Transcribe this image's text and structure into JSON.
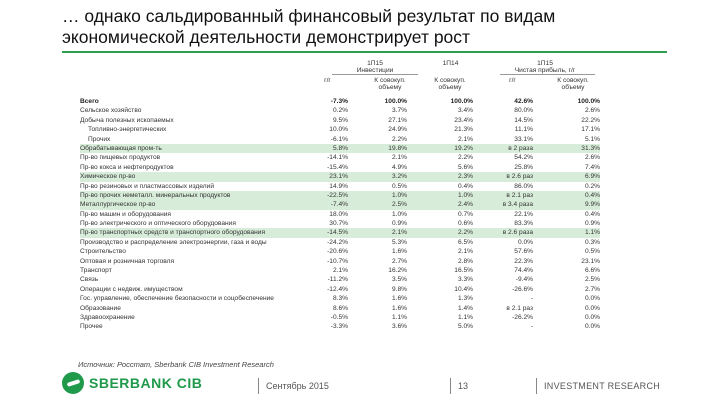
{
  "title": "… однако сальдированный финансовый результат по видам экономической деятельности демонстрирует рост",
  "table": {
    "group1_period": "1П15",
    "group1_label": "Инвестиции",
    "group2_period": "1П14",
    "group3_period": "1П15",
    "group3_label": "Чистая прибыль, г/г",
    "col_yoy": "г/г",
    "col_share": "К совокуп. объему",
    "rows": [
      {
        "label": "Всего",
        "v1": "-7.3%",
        "v2": "100.0%",
        "v3": "100.0%",
        "v4": "42.6%",
        "v5": "100.0%",
        "hl": false,
        "bold": true,
        "ind": false
      },
      {
        "label": "Сельское хозяйство",
        "v1": "0.2%",
        "v2": "3.7%",
        "v3": "3.4%",
        "v4": "80.0%",
        "v5": "2.6%",
        "hl": false,
        "bold": false,
        "ind": false
      },
      {
        "label": "Добыча полезных ископаемых",
        "v1": "9.5%",
        "v2": "27.1%",
        "v3": "23.4%",
        "v4": "14.5%",
        "v5": "22.2%",
        "hl": false,
        "bold": false,
        "ind": false
      },
      {
        "label": "Топливно-энергетических",
        "v1": "10.0%",
        "v2": "24.9%",
        "v3": "21.3%",
        "v4": "11.1%",
        "v5": "17.1%",
        "hl": false,
        "bold": false,
        "ind": true
      },
      {
        "label": "Прочих",
        "v1": "-6.1%",
        "v2": "2.2%",
        "v3": "2.1%",
        "v4": "33.1%",
        "v5": "5.1%",
        "hl": false,
        "bold": false,
        "ind": true
      },
      {
        "label": "Обрабатывающая пром-ть",
        "v1": "5.8%",
        "v2": "19.8%",
        "v3": "19.2%",
        "v4": "в 2 раза",
        "v5": "31.3%",
        "hl": true,
        "bold": false,
        "ind": false
      },
      {
        "label": "Пр-во пищевых продуктов",
        "v1": "-14.1%",
        "v2": "2.1%",
        "v3": "2.2%",
        "v4": "54.2%",
        "v5": "2.6%",
        "hl": false,
        "bold": false,
        "ind": false
      },
      {
        "label": "Пр-во кокса и нефтепродуктов",
        "v1": "-15.4%",
        "v2": "4.9%",
        "v3": "5.6%",
        "v4": "25.8%",
        "v5": "7.4%",
        "hl": false,
        "bold": false,
        "ind": false
      },
      {
        "label": "Химическое пр-во",
        "v1": "23.1%",
        "v2": "3.2%",
        "v3": "2.3%",
        "v4": "в 2.6 раз",
        "v5": "6.9%",
        "hl": true,
        "bold": false,
        "ind": false
      },
      {
        "label": "Пр-во резиновых и пластмассовых изделий",
        "v1": "14.9%",
        "v2": "0.5%",
        "v3": "0.4%",
        "v4": "86.0%",
        "v5": "0.2%",
        "hl": false,
        "bold": false,
        "ind": false
      },
      {
        "label": "Пр-во прочих неметалл. минеральных продуктов",
        "v1": "-22.5%",
        "v2": "1.0%",
        "v3": "1.0%",
        "v4": "в 2.1 раз",
        "v5": "0.4%",
        "hl": true,
        "bold": false,
        "ind": false
      },
      {
        "label": "Металлургическое пр-во",
        "v1": "-7.4%",
        "v2": "2.5%",
        "v3": "2.4%",
        "v4": "в 3.4 раза",
        "v5": "9.9%",
        "hl": true,
        "bold": false,
        "ind": false
      },
      {
        "label": "Пр-во машин и оборудования",
        "v1": "18.0%",
        "v2": "1.0%",
        "v3": "0.7%",
        "v4": "22.1%",
        "v5": "0.4%",
        "hl": false,
        "bold": false,
        "ind": false
      },
      {
        "label": "Пр-во электрического и оптического оборудования",
        "v1": "30.7%",
        "v2": "0.9%",
        "v3": "0.6%",
        "v4": "83.3%",
        "v5": "0.9%",
        "hl": false,
        "bold": false,
        "ind": false
      },
      {
        "label": "Пр-во транспортных средств и транспортного оборудования",
        "v1": "-14.5%",
        "v2": "2.1%",
        "v3": "2.2%",
        "v4": "в 2.6 раза",
        "v5": "1.1%",
        "hl": true,
        "bold": false,
        "ind": false
      },
      {
        "label": "Производство и распределение электроэнергии, газа и воды",
        "v1": "-24.2%",
        "v2": "5.3%",
        "v3": "6.5%",
        "v4": "0.0%",
        "v5": "0.3%",
        "hl": false,
        "bold": false,
        "ind": false
      },
      {
        "label": "Строительство",
        "v1": "-20.6%",
        "v2": "1.6%",
        "v3": "2.1%",
        "v4": "57.6%",
        "v5": "0.5%",
        "hl": false,
        "bold": false,
        "ind": false
      },
      {
        "label": "Оптовая и розничная торговля",
        "v1": "-10.7%",
        "v2": "2.7%",
        "v3": "2.8%",
        "v4": "22.3%",
        "v5": "23.1%",
        "hl": false,
        "bold": false,
        "ind": false
      },
      {
        "label": "Транспорт",
        "v1": "2.1%",
        "v2": "16.2%",
        "v3": "16.5%",
        "v4": "74.4%",
        "v5": "6.6%",
        "hl": false,
        "bold": false,
        "ind": false
      },
      {
        "label": "Связь",
        "v1": "-11.2%",
        "v2": "3.5%",
        "v3": "3.3%",
        "v4": "-9.4%",
        "v5": "2.5%",
        "hl": false,
        "bold": false,
        "ind": false
      },
      {
        "label": "Операции с недвиж. имуществом",
        "v1": "-12.4%",
        "v2": "9.8%",
        "v3": "10.4%",
        "v4": "-26.6%",
        "v5": "2.7%",
        "hl": false,
        "bold": false,
        "ind": false
      },
      {
        "label": "Гос. управление, обеспечение безопасности и соцобеспечение",
        "v1": "8.3%",
        "v2": "1.6%",
        "v3": "1.3%",
        "v4": "-",
        "v5": "0.0%",
        "hl": false,
        "bold": false,
        "ind": false
      },
      {
        "label": "Образование",
        "v1": "8.6%",
        "v2": "1.6%",
        "v3": "1.4%",
        "v4": "в 2.1 раз",
        "v5": "0.0%",
        "hl": false,
        "bold": false,
        "ind": false
      },
      {
        "label": "Здравоохранение",
        "v1": "-0.5%",
        "v2": "1.1%",
        "v3": "1.1%",
        "v4": "-26.2%",
        "v5": "0.0%",
        "hl": false,
        "bold": false,
        "ind": false
      },
      {
        "label": "Прочее",
        "v1": "-3.3%",
        "v2": "3.6%",
        "v3": "5.0%",
        "v4": "-",
        "v5": "0.0%",
        "hl": false,
        "bold": false,
        "ind": false
      }
    ]
  },
  "footer": {
    "source": "Источник: Росстат, Sberbank CIB Investment Research",
    "logo_text": "SBERBANK CIB",
    "date": "Сентябрь 2015",
    "page": "13",
    "section": "INVESTMENT RESEARCH"
  },
  "colors": {
    "accent": "#1f9a4a",
    "highlight": "#d7ecd9",
    "rule": "#2e9e4f"
  }
}
